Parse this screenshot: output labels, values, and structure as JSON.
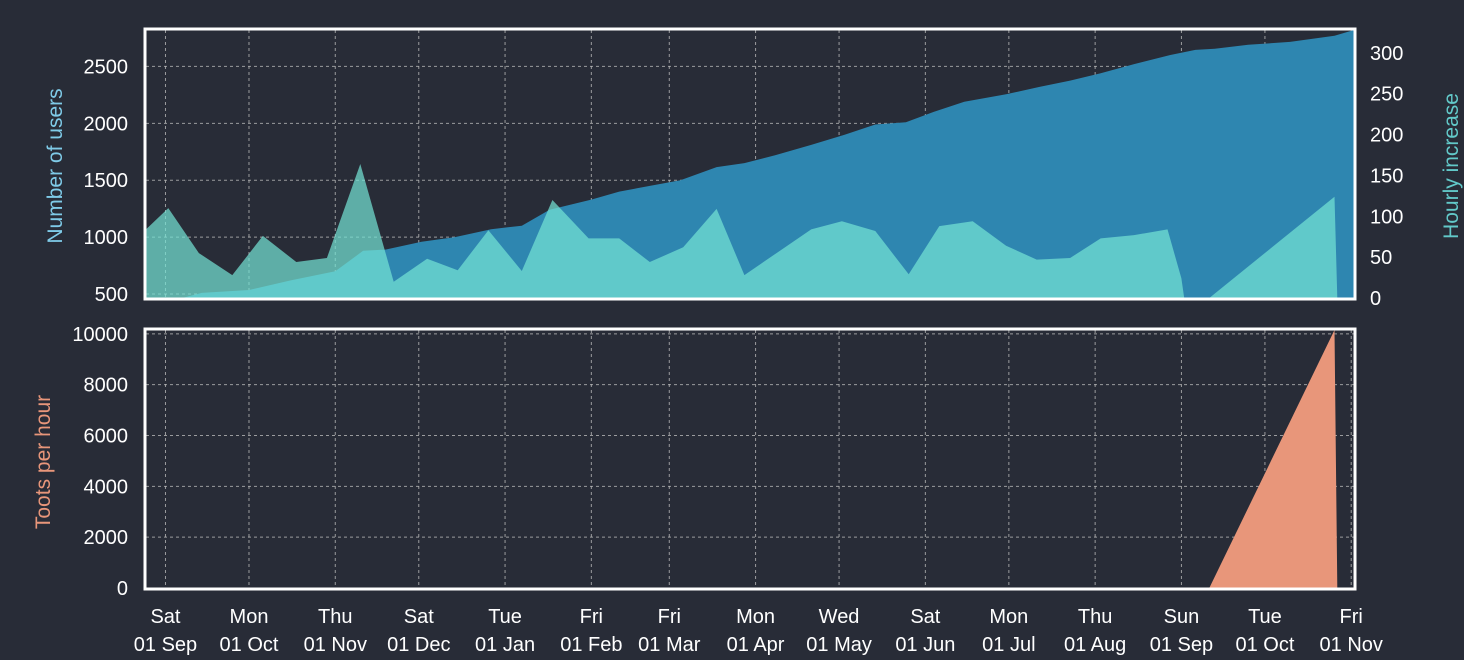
{
  "chart_data": [
    {
      "type": "area",
      "grid": true,
      "xlim": [
        "2018-08-25",
        "2019-11-02"
      ],
      "x_ticks": [
        {
          "day": "Sat",
          "date": "01 Sep",
          "x": "2018-09-01"
        },
        {
          "day": "Mon",
          "date": "01 Oct",
          "x": "2018-10-01"
        },
        {
          "day": "Thu",
          "date": "01 Nov",
          "x": "2018-11-01"
        },
        {
          "day": "Sat",
          "date": "01 Dec",
          "x": "2018-12-01"
        },
        {
          "day": "Tue",
          "date": "01 Jan",
          "x": "2019-01-01"
        },
        {
          "day": "Fri",
          "date": "01 Feb",
          "x": "2019-02-01"
        },
        {
          "day": "Fri",
          "date": "01 Mar",
          "x": "2019-03-01"
        },
        {
          "day": "Mon",
          "date": "01 Apr",
          "x": "2019-04-01"
        },
        {
          "day": "Wed",
          "date": "01 May",
          "x": "2019-05-01"
        },
        {
          "day": "Sat",
          "date": "01 Jun",
          "x": "2019-06-01"
        },
        {
          "day": "Mon",
          "date": "01 Jul",
          "x": "2019-07-01"
        },
        {
          "day": "Thu",
          "date": "01 Aug",
          "x": "2019-08-01"
        },
        {
          "day": "Sun",
          "date": "01 Sep",
          "x": "2019-09-01"
        },
        {
          "day": "Tue",
          "date": "01 Oct",
          "x": "2019-10-01"
        },
        {
          "day": "Fri",
          "date": "01 Nov",
          "x": "2019-11-01"
        }
      ],
      "left_axis": {
        "label": "Number of users",
        "ylim": [
          465,
          2820
        ],
        "ticks": [
          500,
          1000,
          1500,
          2000,
          2500
        ],
        "color": "#7fcbe8"
      },
      "right_axis": {
        "label": "Hourly increase",
        "ylim": [
          0,
          328
        ],
        "ticks": [
          0,
          50,
          100,
          150,
          200,
          250,
          300
        ],
        "color": "#62c9c9"
      },
      "series": [
        {
          "axis": "left",
          "color": "#2e86b0",
          "points": [
            [
              "2018-08-25",
              465
            ],
            [
              "2018-09-07",
              465
            ],
            [
              "2018-09-14",
              510
            ],
            [
              "2018-10-01",
              535
            ],
            [
              "2018-10-16",
              620
            ],
            [
              "2018-11-01",
              700
            ],
            [
              "2018-11-11",
              880
            ],
            [
              "2018-11-19",
              890
            ],
            [
              "2018-12-02",
              960
            ],
            [
              "2018-12-14",
              1000
            ],
            [
              "2018-12-27",
              1070
            ],
            [
              "2019-01-07",
              1100
            ],
            [
              "2019-01-17",
              1240
            ],
            [
              "2019-02-01",
              1330
            ],
            [
              "2019-02-11",
              1400
            ],
            [
              "2019-02-22",
              1450
            ],
            [
              "2019-03-05",
              1500
            ],
            [
              "2019-03-18",
              1615
            ],
            [
              "2019-03-28",
              1650
            ],
            [
              "2019-04-08",
              1720
            ],
            [
              "2019-04-21",
              1810
            ],
            [
              "2019-05-03",
              1900
            ],
            [
              "2019-05-14",
              1990
            ],
            [
              "2019-05-25",
              2010
            ],
            [
              "2019-06-04",
              2100
            ],
            [
              "2019-06-15",
              2190
            ],
            [
              "2019-06-30",
              2255
            ],
            [
              "2019-07-12",
              2320
            ],
            [
              "2019-07-23",
              2375
            ],
            [
              "2019-08-03",
              2440
            ],
            [
              "2019-08-15",
              2520
            ],
            [
              "2019-08-28",
              2600
            ],
            [
              "2019-09-06",
              2645
            ],
            [
              "2019-09-13",
              2655
            ],
            [
              "2019-09-25",
              2690
            ],
            [
              "2019-10-10",
              2715
            ],
            [
              "2019-10-26",
              2770
            ],
            [
              "2019-11-02",
              2820
            ]
          ]
        },
        {
          "axis": "right",
          "color": "#75e4d5",
          "points": [
            [
              "2018-08-25",
              84
            ],
            [
              "2018-09-02",
              110
            ],
            [
              "2018-09-13",
              55
            ],
            [
              "2018-09-25",
              28
            ],
            [
              "2018-10-06",
              76
            ],
            [
              "2018-10-18",
              44
            ],
            [
              "2018-10-29",
              49
            ],
            [
              "2018-11-10",
              164
            ],
            [
              "2018-11-22",
              20
            ],
            [
              "2018-12-04",
              48
            ],
            [
              "2018-12-15",
              34
            ],
            [
              "2018-12-26",
              83
            ],
            [
              "2019-01-07",
              33
            ],
            [
              "2019-01-18",
              120
            ],
            [
              "2019-01-31",
              73
            ],
            [
              "2019-02-11",
              73
            ],
            [
              "2019-02-22",
              44
            ],
            [
              "2019-03-06",
              62
            ],
            [
              "2019-03-18",
              109
            ],
            [
              "2019-03-28",
              28
            ],
            [
              "2019-04-09",
              56
            ],
            [
              "2019-04-21",
              84
            ],
            [
              "2019-05-02",
              94
            ],
            [
              "2019-05-14",
              82
            ],
            [
              "2019-05-26",
              29
            ],
            [
              "2019-06-06",
              88
            ],
            [
              "2019-06-18",
              94
            ],
            [
              "2019-06-30",
              64
            ],
            [
              "2019-07-11",
              47
            ],
            [
              "2019-07-23",
              49
            ],
            [
              "2019-08-03",
              73
            ],
            [
              "2019-08-15",
              77
            ],
            [
              "2019-08-27",
              84
            ],
            [
              "2019-09-01",
              24
            ],
            [
              "2019-09-02",
              0
            ],
            [
              "2019-09-11",
              0
            ],
            [
              "2019-10-26",
              124
            ],
            [
              "2019-10-27",
              0
            ],
            [
              "2019-11-02",
              0
            ]
          ]
        }
      ]
    },
    {
      "type": "area",
      "grid": true,
      "xlim": [
        "2018-08-25",
        "2019-11-02"
      ],
      "left_axis": {
        "label": "Toots per hour",
        "ylim": [
          0,
          10150
        ],
        "ticks": [
          0,
          2000,
          4000,
          6000,
          8000,
          10000
        ],
        "color": "#e8967a"
      },
      "series": [
        {
          "axis": "left",
          "color": "#e8967a",
          "points": [
            [
              "2018-08-25",
              0
            ],
            [
              "2019-09-11",
              0
            ],
            [
              "2019-10-26",
              10150
            ],
            [
              "2019-10-27",
              0
            ],
            [
              "2019-11-02",
              0
            ]
          ]
        }
      ]
    }
  ]
}
